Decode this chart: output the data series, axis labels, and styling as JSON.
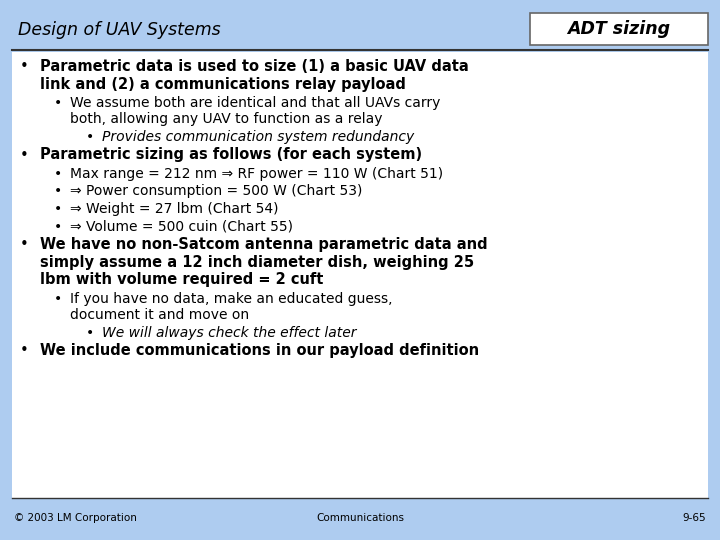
{
  "bg_color": "#AECCF0",
  "header_title_left": "Design of UAV Systems",
  "header_title_right": "ADT sizing",
  "header_box_color": "#FFFFFF",
  "header_text_color": "#000000",
  "divider_color": "#333333",
  "footer_left": "© 2003 LM Corporation",
  "footer_center": "Communications",
  "footer_right": "9-65",
  "footer_color": "#000000",
  "content_bg": "#FFFFFF",
  "content_lines": [
    {
      "level": 0,
      "bold": true,
      "italic": false,
      "text": "Parametric data is used to size (1) a basic UAV data\nlink and (2) a communications relay payload"
    },
    {
      "level": 1,
      "bold": false,
      "italic": false,
      "text": "We assume both are identical and that all UAVs carry\nboth, allowing any UAV to function as a relay"
    },
    {
      "level": 2,
      "bold": false,
      "italic": true,
      "text": "Provides communication system redundancy"
    },
    {
      "level": 0,
      "bold": true,
      "italic": false,
      "text": "Parametric sizing as follows (for each system)"
    },
    {
      "level": 1,
      "bold": false,
      "italic": false,
      "text": "Max range = 212 nm ⇒ RF power = 110 W (Chart 51)"
    },
    {
      "level": 1,
      "bold": false,
      "italic": false,
      "text": "⇒ Power consumption = 500 W (Chart 53)"
    },
    {
      "level": 1,
      "bold": false,
      "italic": false,
      "text": "⇒ Weight = 27 lbm (Chart 54)"
    },
    {
      "level": 1,
      "bold": false,
      "italic": false,
      "text": "⇒ Volume = 500 cuin (Chart 55)"
    },
    {
      "level": 0,
      "bold": true,
      "italic": false,
      "text": "We have no non-Satcom antenna parametric data and\nsimply assume a 12 inch diameter dish, weighing 25\nlbm with volume required = 2 cuft"
    },
    {
      "level": 1,
      "bold": false,
      "italic": false,
      "text": "If you have no data, make an educated guess,\ndocument it and move on"
    },
    {
      "level": 2,
      "bold": false,
      "italic": true,
      "text": "We will always check the effect later"
    },
    {
      "level": 0,
      "bold": true,
      "italic": false,
      "text": "We include communications in our payload definition"
    }
  ]
}
